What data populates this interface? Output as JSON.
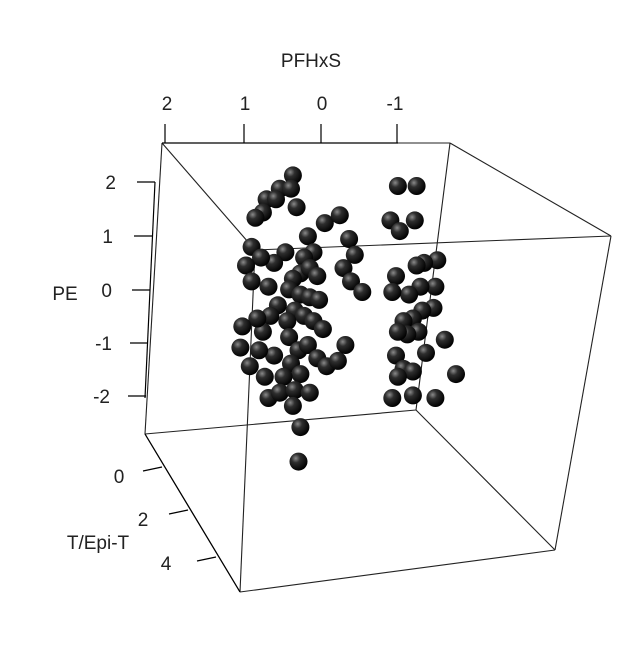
{
  "chart_data": {
    "type": "scatter",
    "projection": "3d",
    "title": "",
    "axes": {
      "top": {
        "label": "PFHxS",
        "ticks": [
          "2",
          "1",
          "0",
          "-1"
        ]
      },
      "left": {
        "label": "PE",
        "ticks": [
          "2",
          "1",
          "0",
          "-1",
          "-2"
        ]
      },
      "depth": {
        "label": "T/Epi-T",
        "ticks": [
          "0",
          "2",
          "4"
        ]
      }
    },
    "points": [
      {
        "x": 0.75,
        "y": 2.2
      },
      {
        "x": 1.1,
        "y": 1.95
      },
      {
        "x": 0.8,
        "y": 1.95
      },
      {
        "x": 1.45,
        "y": 1.75
      },
      {
        "x": 1.2,
        "y": 1.75
      },
      {
        "x": 0.65,
        "y": 1.6
      },
      {
        "x": 1.55,
        "y": 1.5
      },
      {
        "x": 1.75,
        "y": 1.4
      },
      {
        "x": 0.35,
        "y": 1.05
      },
      {
        "x": -0.1,
        "y": 1.3
      },
      {
        "x": -0.5,
        "y": 1.45
      },
      {
        "x": -0.75,
        "y": 1.0
      },
      {
        "x": -0.9,
        "y": 0.7
      },
      {
        "x": 0.2,
        "y": 0.75
      },
      {
        "x": 0.45,
        "y": 0.65
      },
      {
        "x": 0.95,
        "y": 0.75
      },
      {
        "x": 1.25,
        "y": 0.55
      },
      {
        "x": -0.6,
        "y": 0.45
      },
      {
        "x": -0.8,
        "y": 0.2
      },
      {
        "x": -1.1,
        "y": 0.0
      },
      {
        "x": 1.85,
        "y": 0.85
      },
      {
        "x": 1.6,
        "y": 0.65
      },
      {
        "x": 2.0,
        "y": 0.5
      },
      {
        "x": 1.85,
        "y": 0.2
      },
      {
        "x": 1.4,
        "y": 0.1
      },
      {
        "x": 0.55,
        "y": 0.35
      },
      {
        "x": 0.3,
        "y": 0.45
      },
      {
        "x": 0.1,
        "y": 0.3
      },
      {
        "x": 0.75,
        "y": 0.25
      },
      {
        "x": 0.85,
        "y": 0.05
      },
      {
        "x": 0.55,
        "y": -0.05
      },
      {
        "x": 0.3,
        "y": -0.1
      },
      {
        "x": 0.05,
        "y": -0.15
      },
      {
        "x": 0.7,
        "y": -0.35
      },
      {
        "x": 0.45,
        "y": -0.45
      },
      {
        "x": 0.2,
        "y": -0.55
      },
      {
        "x": -0.05,
        "y": -0.7
      },
      {
        "x": 0.9,
        "y": -0.55
      },
      {
        "x": 1.15,
        "y": -0.25
      },
      {
        "x": 1.35,
        "y": -0.45
      },
      {
        "x": 1.55,
        "y": -0.75
      },
      {
        "x": 1.7,
        "y": -0.5
      },
      {
        "x": 0.85,
        "y": -0.85
      },
      {
        "x": 0.6,
        "y": -1.1
      },
      {
        "x": 0.35,
        "y": -1.0
      },
      {
        "x": 0.1,
        "y": -1.25
      },
      {
        "x": -0.15,
        "y": -1.4
      },
      {
        "x": -0.45,
        "y": -1.3
      },
      {
        "x": -0.65,
        "y": -1.0
      },
      {
        "x": 0.8,
        "y": -1.35
      },
      {
        "x": 0.55,
        "y": -1.55
      },
      {
        "x": 1.0,
        "y": -1.6
      },
      {
        "x": 1.25,
        "y": -1.2
      },
      {
        "x": 1.5,
        "y": -1.6
      },
      {
        "x": 1.4,
        "y": -2.0
      },
      {
        "x": 1.1,
        "y": -1.9
      },
      {
        "x": 0.7,
        "y": -1.85
      },
      {
        "x": 0.3,
        "y": -1.9
      },
      {
        "x": 1.9,
        "y": -1.4
      },
      {
        "x": 1.65,
        "y": -1.1
      },
      {
        "x": 0.75,
        "y": -2.15
      },
      {
        "x": 0.55,
        "y": -2.55
      },
      {
        "x": 0.6,
        "y": -3.2
      },
      {
        "x": 2.1,
        "y": -0.65
      },
      {
        "x": 2.15,
        "y": -1.05
      },
      {
        "x": -3.1,
        "y": 0.6
      },
      {
        "x": -2.75,
        "y": 0.55
      },
      {
        "x": -2.55,
        "y": 0.5
      },
      {
        "x": -2.0,
        "y": 0.3
      },
      {
        "x": -3.05,
        "y": 0.1
      },
      {
        "x": -2.65,
        "y": 0.1
      },
      {
        "x": -2.35,
        "y": -0.05
      },
      {
        "x": -1.9,
        "y": -0.0
      },
      {
        "x": -3.0,
        "y": -0.3
      },
      {
        "x": -2.7,
        "y": -0.35
      },
      {
        "x": -2.45,
        "y": -0.5
      },
      {
        "x": -2.2,
        "y": -0.55
      },
      {
        "x": -2.6,
        "y": -0.75
      },
      {
        "x": -2.3,
        "y": -0.8
      },
      {
        "x": -2.05,
        "y": -0.75
      },
      {
        "x": -3.3,
        "y": -0.9
      },
      {
        "x": -2.8,
        "y": -1.15
      },
      {
        "x": -2.0,
        "y": -1.2
      },
      {
        "x": -2.2,
        "y": -1.45
      },
      {
        "x": -2.45,
        "y": -1.5
      },
      {
        "x": -2.05,
        "y": -1.6
      },
      {
        "x": -3.6,
        "y": -1.55
      },
      {
        "x": -2.45,
        "y": -1.95
      },
      {
        "x": -3.05,
        "y": -2.0
      },
      {
        "x": -1.9,
        "y": -2.0
      },
      {
        "x": -2.55,
        "y": 2.0
      },
      {
        "x": -2.05,
        "y": 2.0
      },
      {
        "x": -2.5,
        "y": 1.35
      },
      {
        "x": -1.85,
        "y": 1.35
      },
      {
        "x": -2.1,
        "y": 1.15
      }
    ]
  }
}
